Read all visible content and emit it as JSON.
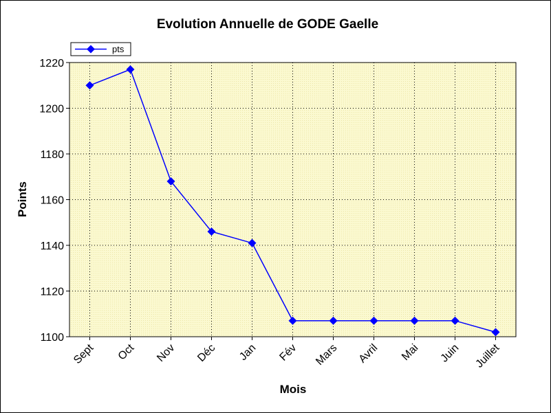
{
  "chart_data": {
    "type": "line",
    "title": "Evolution Annuelle de GODE Gaelle",
    "xlabel": "Mois",
    "ylabel": "Points",
    "categories": [
      "Sept",
      "Oct",
      "Nov",
      "Déc",
      "Jan",
      "Fév",
      "Mars",
      "Avril",
      "Mai",
      "Juin",
      "Juillet"
    ],
    "series": [
      {
        "name": "pts",
        "color": "#0000ff",
        "values": [
          1210,
          1217,
          1168,
          1146,
          1141,
          1107,
          1107,
          1107,
          1107,
          1107,
          1102
        ]
      }
    ],
    "ylim": [
      1100,
      1220
    ],
    "yticks": [
      1100,
      1120,
      1140,
      1160,
      1180,
      1200,
      1220
    ],
    "grid": true,
    "legend": "top-left",
    "plot_background": "#fbf9d0"
  }
}
